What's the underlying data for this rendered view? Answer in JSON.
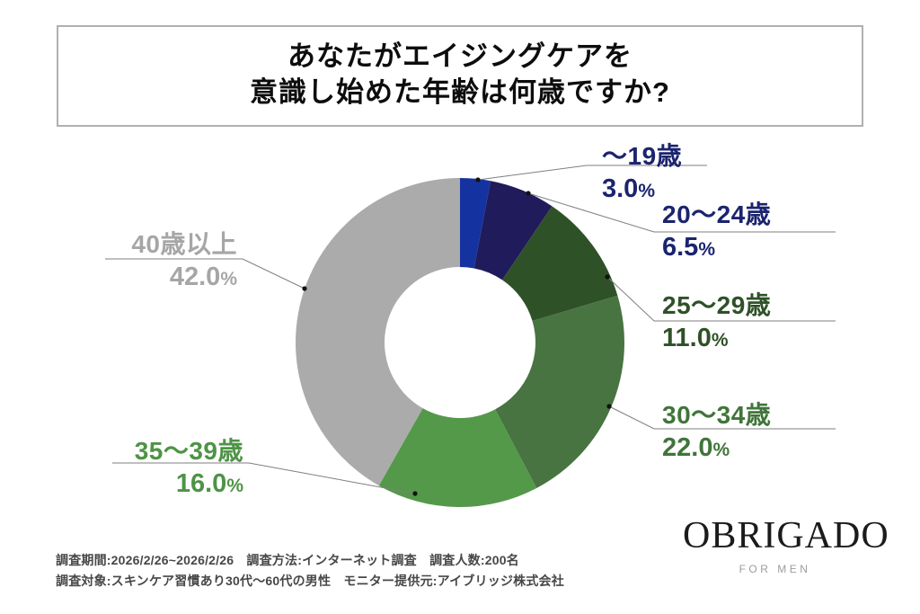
{
  "title": {
    "line1": "あなたがエイジングケアを",
    "line2": "意識し始めた年齢は何歳ですか?"
  },
  "chart_data": {
    "type": "pie",
    "variant": "donut",
    "question": "あなたがエイジングケアを意識し始めた年齢は何歳ですか?",
    "unit": "%",
    "direction": "clockwise",
    "start_angle_deg": 0,
    "hole_ratio": 0.46,
    "categories": [
      "〜19歳",
      "20〜24歳",
      "25〜29歳",
      "30〜34歳",
      "35〜39歳",
      "40歳以上"
    ],
    "values": [
      3.0,
      6.5,
      11.0,
      22.0,
      16.0,
      42.0
    ],
    "segments": [
      {
        "name": "〜19歳",
        "value": 3.0,
        "display": "3.0",
        "color": "#1533a0",
        "text_color": "#1b246e"
      },
      {
        "name": "20〜24歳",
        "value": 6.5,
        "display": "6.5",
        "color": "#201b5b",
        "text_color": "#1b246e"
      },
      {
        "name": "25〜29歳",
        "value": 11.0,
        "display": "11.0",
        "color": "#2f5128",
        "text_color": "#2f5128"
      },
      {
        "name": "30〜34歳",
        "value": 22.0,
        "display": "22.0",
        "color": "#477440",
        "text_color": "#40753a"
      },
      {
        "name": "35〜39歳",
        "value": 16.0,
        "display": "16.0",
        "color": "#54994a",
        "text_color": "#4e9346"
      },
      {
        "name": "40歳以上",
        "value": 42.0,
        "display": "42.0",
        "color": "#ababab",
        "text_color": "#a6a6a6"
      }
    ]
  },
  "footer": {
    "line1": "調査期間:2026/2/26~2026/2/26　調査方法:インターネット調査　調査人数:200名",
    "line2": "調査対象:スキンケア習慣あり30代〜60代の男性　モニター提供元:アイブリッジ株式会社"
  },
  "logo": {
    "brand": "OBRIGADO",
    "tagline": "FOR MEN"
  }
}
